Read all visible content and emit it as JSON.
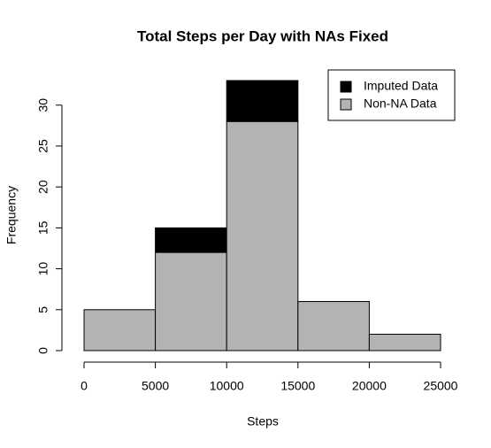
{
  "chart_data": {
    "type": "histogram",
    "title": "Total Steps per Day with NAs Fixed",
    "xlabel": "Steps",
    "ylabel": "Frequency",
    "bins": [
      0,
      5000,
      10000,
      15000,
      20000,
      25000
    ],
    "series": [
      {
        "name": "Imputed Data",
        "color": "#000000",
        "values": [
          0,
          3,
          5,
          0,
          0
        ]
      },
      {
        "name": "Non-NA Data",
        "color": "#b3b3b3",
        "values": [
          5,
          12,
          28,
          6,
          2
        ]
      }
    ],
    "xlim": [
      0,
      25000
    ],
    "xticks": [
      0,
      5000,
      10000,
      15000,
      20000,
      25000
    ],
    "ylim": [
      0,
      33
    ],
    "yticks": [
      0,
      5,
      10,
      15,
      20,
      25,
      30
    ],
    "legend": "topright"
  }
}
